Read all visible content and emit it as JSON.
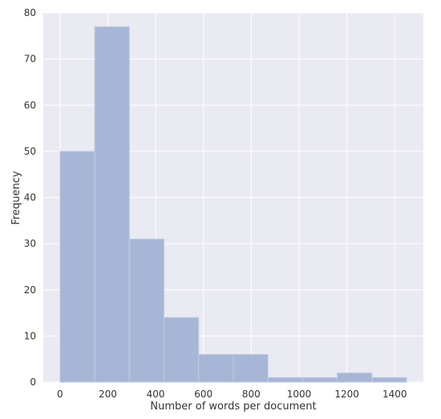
{
  "chart_data": {
    "type": "bar",
    "subtype": "histogram",
    "xlabel": "Number of words per document",
    "ylabel": "Frequency",
    "bin_edges": [
      0,
      145,
      290,
      435,
      580,
      725,
      870,
      1015,
      1160,
      1305,
      1450
    ],
    "values": [
      50,
      77,
      31,
      14,
      6,
      6,
      1,
      1,
      2,
      1
    ],
    "xlim": [
      -70,
      1520
    ],
    "ylim": [
      0,
      80
    ],
    "xticks": [
      0,
      200,
      400,
      600,
      800,
      1000,
      1200,
      1400
    ],
    "yticks": [
      0,
      10,
      20,
      30,
      40,
      50,
      60,
      70,
      80
    ],
    "grid": true,
    "colors": {
      "bar_fill": "#a7b5d6",
      "bar_edge": "#c3cce3",
      "plot_background": "#eaeaf2",
      "grid": "#ffffff",
      "text": "#333333"
    }
  }
}
